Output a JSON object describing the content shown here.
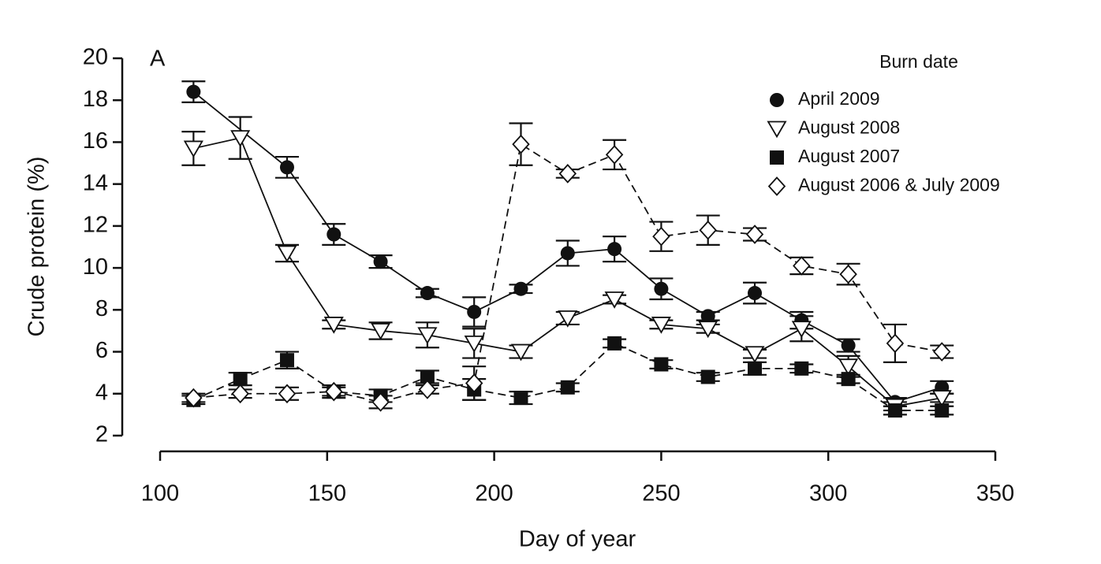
{
  "chart_data": {
    "type": "line",
    "panel_label": "A",
    "xlabel": "Day of year",
    "ylabel": "Crude protein (%)",
    "legend_title": "Burn date",
    "legend_position": "upper right",
    "xlim": [
      100,
      350
    ],
    "xticks": [
      100,
      150,
      200,
      250,
      300,
      350
    ],
    "ylim": [
      2,
      20
    ],
    "yticks": [
      2,
      4,
      6,
      8,
      10,
      12,
      14,
      16,
      18,
      20
    ],
    "series": [
      {
        "name": "April 2009",
        "marker": "circle",
        "color": "#111111",
        "dashed": false,
        "x": [
          110,
          138,
          152,
          166,
          180,
          194,
          208,
          222,
          236,
          250,
          264,
          278,
          292,
          306,
          320,
          334
        ],
        "values": [
          18.4,
          14.8,
          11.6,
          10.3,
          8.8,
          7.9,
          9.0,
          10.7,
          10.9,
          9.0,
          7.7,
          8.8,
          7.5,
          6.3,
          3.6,
          4.3
        ],
        "errors": [
          0.5,
          0.5,
          0.5,
          0.3,
          0.2,
          0.7,
          0.2,
          0.6,
          0.6,
          0.5,
          0.2,
          0.5,
          0.4,
          0.3,
          0.2,
          0.3
        ]
      },
      {
        "name": "August 2008",
        "marker": "triangle-down",
        "color": "#111111",
        "dashed": false,
        "x": [
          110,
          124,
          138,
          152,
          166,
          180,
          194,
          208,
          222,
          236,
          250,
          264,
          278,
          292,
          306,
          320,
          334
        ],
        "values": [
          15.7,
          16.2,
          10.7,
          7.3,
          7.0,
          6.8,
          6.4,
          6.0,
          7.6,
          8.5,
          7.3,
          7.1,
          5.9,
          7.1,
          5.3,
          3.4,
          3.8
        ],
        "errors": [
          0.8,
          1.0,
          0.4,
          0.2,
          0.4,
          0.6,
          0.7,
          0.3,
          0.3,
          0.2,
          0.2,
          0.2,
          0.2,
          0.6,
          0.5,
          0.2,
          0.2
        ]
      },
      {
        "name": "August 2007",
        "marker": "square",
        "color": "#111111",
        "dashed": true,
        "x": [
          110,
          124,
          138,
          152,
          166,
          180,
          194,
          208,
          222,
          236,
          250,
          264,
          278,
          292,
          306,
          320,
          334
        ],
        "values": [
          3.7,
          4.7,
          5.6,
          4.1,
          3.9,
          4.8,
          4.2,
          3.8,
          4.3,
          6.4,
          5.4,
          4.8,
          5.2,
          5.2,
          4.7,
          3.2,
          3.2
        ],
        "errors": [
          0.2,
          0.3,
          0.4,
          0.3,
          0.3,
          0.3,
          0.5,
          0.3,
          0.2,
          0.2,
          0.2,
          0.2,
          0.3,
          0.2,
          0.2,
          0.2,
          0.2
        ]
      },
      {
        "name": "August 2006 & July 2009",
        "marker": "diamond",
        "color": "#111111",
        "dashed": true,
        "x": [
          110,
          124,
          138,
          152,
          166,
          180,
          194,
          208,
          222,
          236,
          250,
          264,
          278,
          292,
          306,
          320,
          334
        ],
        "values": [
          3.8,
          4.0,
          4.0,
          4.1,
          3.6,
          4.2,
          4.5,
          15.9,
          14.5,
          15.4,
          11.5,
          11.8,
          11.6,
          10.1,
          9.7,
          6.4,
          6.0
        ],
        "errors": [
          0.2,
          0.2,
          0.3,
          0.2,
          0.3,
          0.2,
          0.8,
          1.0,
          0.2,
          0.7,
          0.7,
          0.7,
          0.3,
          0.4,
          0.5,
          0.9,
          0.3
        ]
      }
    ]
  }
}
